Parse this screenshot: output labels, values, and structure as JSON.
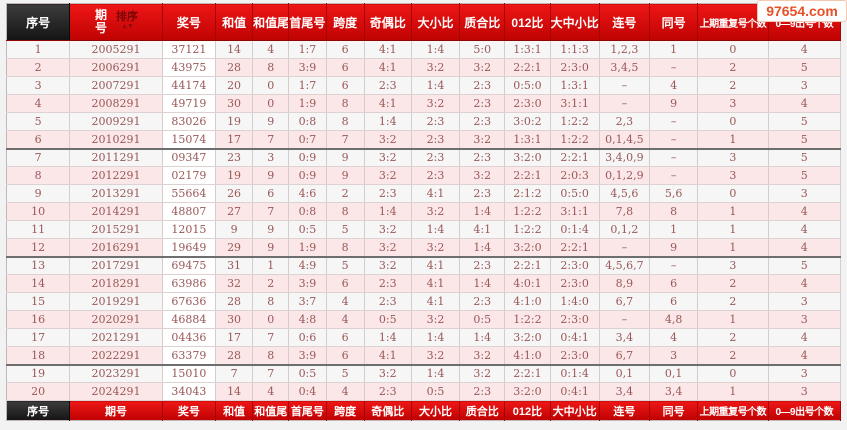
{
  "watermark": "97654.com",
  "sort_label": "排序",
  "colors": {
    "header_red": "#d40a0a",
    "seq_header_dark": "#1e1e1e",
    "row_pink": "#fbe7e7",
    "row_light": "#f6f6f6",
    "cell_text": "#9a5858",
    "watermark_text": "#e8502a"
  },
  "columns": [
    "序号",
    "期号",
    "奖号",
    "和值",
    "和值尾",
    "首尾号",
    "跨度",
    "奇偶比",
    "大小比",
    "质合比",
    "012比",
    "大中小比",
    "连号",
    "同号",
    "上期重复号个数",
    "0—9出号个数"
  ],
  "rows": [
    [
      "1",
      "2005291",
      "37121",
      "14",
      "4",
      "1:7",
      "6",
      "4:1",
      "1:4",
      "5:0",
      "1:3:1",
      "1:1:3",
      "1,2,3",
      "1",
      "0",
      "4"
    ],
    [
      "2",
      "2006291",
      "43975",
      "28",
      "8",
      "3:9",
      "6",
      "4:1",
      "3:2",
      "3:2",
      "2:2:1",
      "2:3:0",
      "3,4,5",
      "–",
      "2",
      "5"
    ],
    [
      "3",
      "2007291",
      "44174",
      "20",
      "0",
      "1:7",
      "6",
      "2:3",
      "1:4",
      "2:3",
      "0:5:0",
      "1:3:1",
      "–",
      "4",
      "2",
      "3"
    ],
    [
      "4",
      "2008291",
      "49719",
      "30",
      "0",
      "1:9",
      "8",
      "4:1",
      "3:2",
      "2:3",
      "2:3:0",
      "3:1:1",
      "–",
      "9",
      "3",
      "4"
    ],
    [
      "5",
      "2009291",
      "83026",
      "19",
      "9",
      "0:8",
      "8",
      "1:4",
      "2:3",
      "2:3",
      "3:0:2",
      "1:2:2",
      "2,3",
      "–",
      "0",
      "5"
    ],
    [
      "6",
      "2010291",
      "15074",
      "17",
      "7",
      "0:7",
      "7",
      "3:2",
      "2:3",
      "3:2",
      "1:3:1",
      "1:2:2",
      "0,1,4,5",
      "–",
      "1",
      "5"
    ],
    [
      "7",
      "2011291",
      "09347",
      "23",
      "3",
      "0:9",
      "9",
      "3:2",
      "2:3",
      "2:3",
      "3:2:0",
      "2:2:1",
      "3,4,0,9",
      "–",
      "3",
      "5"
    ],
    [
      "8",
      "2012291",
      "02179",
      "19",
      "9",
      "0:9",
      "9",
      "3:2",
      "2:3",
      "3:2",
      "2:2:1",
      "2:0:3",
      "0,1,2,9",
      "–",
      "3",
      "5"
    ],
    [
      "9",
      "2013291",
      "55664",
      "26",
      "6",
      "4:6",
      "2",
      "2:3",
      "4:1",
      "2:3",
      "2:1:2",
      "0:5:0",
      "4,5,6",
      "5,6",
      "0",
      "3"
    ],
    [
      "10",
      "2014291",
      "48807",
      "27",
      "7",
      "0:8",
      "8",
      "1:4",
      "3:2",
      "1:4",
      "1:2:2",
      "3:1:1",
      "7,8",
      "8",
      "1",
      "4"
    ],
    [
      "11",
      "2015291",
      "12015",
      "9",
      "9",
      "0:5",
      "5",
      "3:2",
      "1:4",
      "4:1",
      "1:2:2",
      "0:1:4",
      "0,1,2",
      "1",
      "1",
      "4"
    ],
    [
      "12",
      "2016291",
      "19649",
      "29",
      "9",
      "1:9",
      "8",
      "3:2",
      "3:2",
      "1:4",
      "3:2:0",
      "2:2:1",
      "–",
      "9",
      "1",
      "4"
    ],
    [
      "13",
      "2017291",
      "69475",
      "31",
      "1",
      "4:9",
      "5",
      "3:2",
      "4:1",
      "2:3",
      "2:2:1",
      "2:3:0",
      "4,5,6,7",
      "–",
      "3",
      "5"
    ],
    [
      "14",
      "2018291",
      "63986",
      "32",
      "2",
      "3:9",
      "6",
      "2:3",
      "4:1",
      "1:4",
      "4:0:1",
      "2:3:0",
      "8,9",
      "6",
      "2",
      "4"
    ],
    [
      "15",
      "2019291",
      "67636",
      "28",
      "8",
      "3:7",
      "4",
      "2:3",
      "4:1",
      "2:3",
      "4:1:0",
      "1:4:0",
      "6,7",
      "6",
      "2",
      "3"
    ],
    [
      "16",
      "2020291",
      "46884",
      "30",
      "0",
      "4:8",
      "4",
      "0:5",
      "3:2",
      "0:5",
      "1:2:2",
      "2:3:0",
      "–",
      "4,8",
      "1",
      "3"
    ],
    [
      "17",
      "2021291",
      "04436",
      "17",
      "7",
      "0:6",
      "6",
      "1:4",
      "1:4",
      "1:4",
      "3:2:0",
      "0:4:1",
      "3,4",
      "4",
      "2",
      "4"
    ],
    [
      "18",
      "2022291",
      "63379",
      "28",
      "8",
      "3:9",
      "6",
      "4:1",
      "3:2",
      "3:2",
      "4:1:0",
      "2:3:0",
      "6,7",
      "3",
      "2",
      "4"
    ],
    [
      "19",
      "2023291",
      "15010",
      "7",
      "7",
      "0:5",
      "5",
      "3:2",
      "1:4",
      "3:2",
      "2:2:1",
      "0:1:4",
      "0,1",
      "0,1",
      "0",
      "3"
    ],
    [
      "20",
      "2024291",
      "34043",
      "14",
      "4",
      "0:4",
      "4",
      "2:3",
      "0:5",
      "2:3",
      "3:2:0",
      "0:4:1",
      "3,4",
      "3,4",
      "1",
      "3"
    ]
  ]
}
